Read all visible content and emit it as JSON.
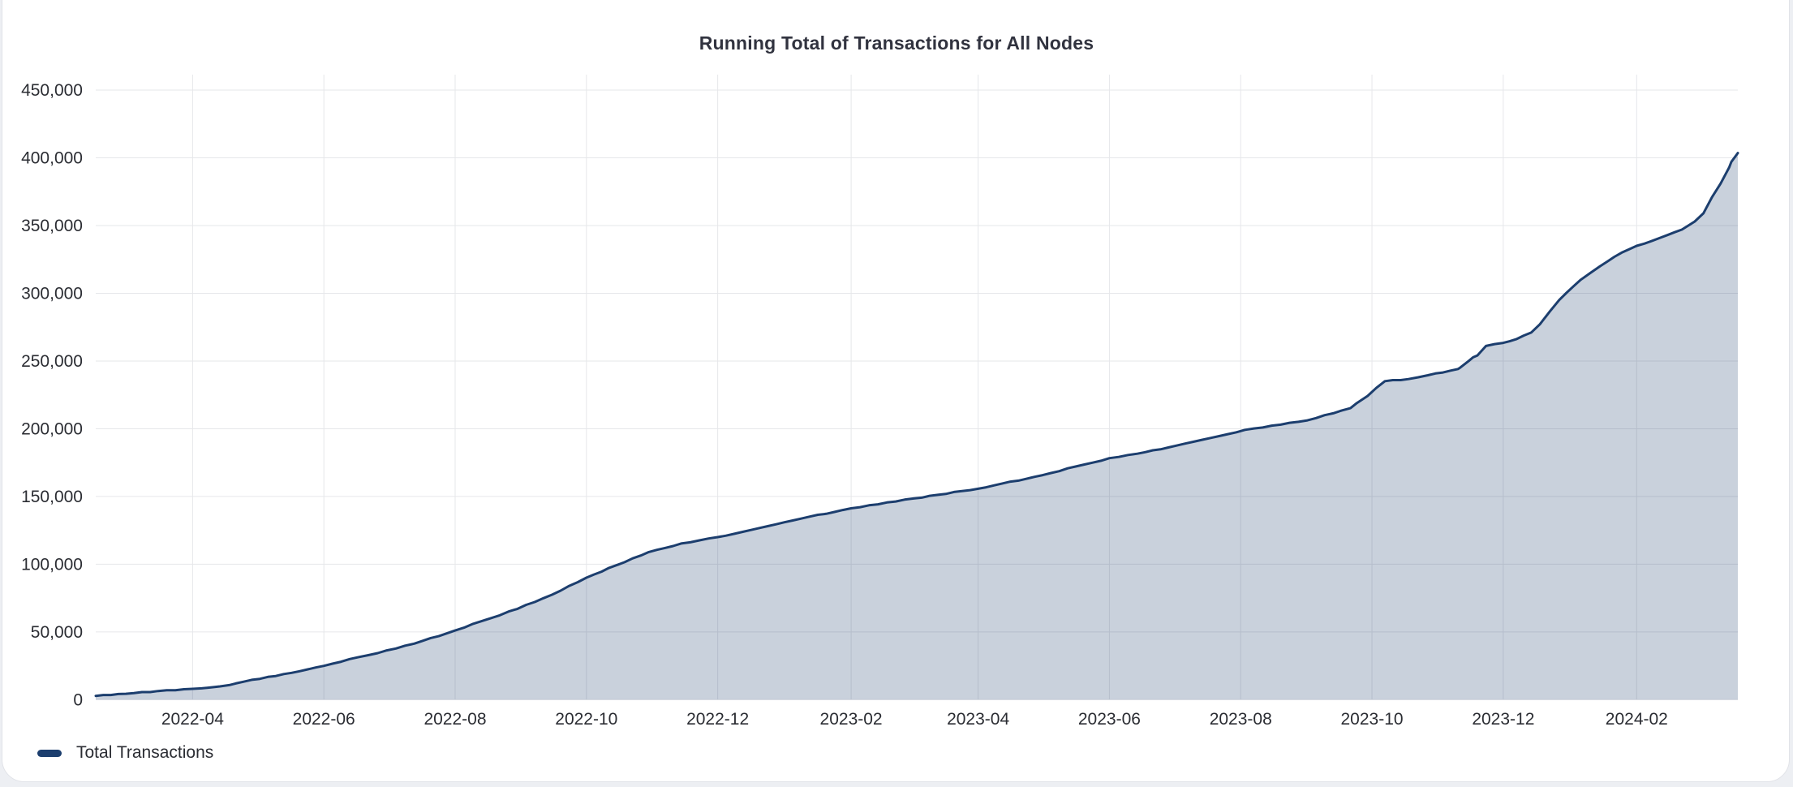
{
  "chart_data": {
    "type": "area",
    "title": "Running Total of Transactions for All Nodes",
    "legend": {
      "position": "bottom-left",
      "items": [
        {
          "label": "Total Transactions",
          "color": "#1c3e6e"
        }
      ]
    },
    "x_axis": {
      "type": "date",
      "range": [
        "2022-02-15",
        "2024-03-19"
      ],
      "tick_dates": [
        "2022-04-01",
        "2022-06-01",
        "2022-08-01",
        "2022-10-01",
        "2022-12-01",
        "2023-02-01",
        "2023-04-01",
        "2023-06-01",
        "2023-08-01",
        "2023-10-01",
        "2023-12-01",
        "2024-02-01"
      ],
      "tick_labels": [
        "2022-04",
        "2022-06",
        "2022-08",
        "2022-10",
        "2022-12",
        "2023-02",
        "2023-04",
        "2023-06",
        "2023-08",
        "2023-10",
        "2023-12",
        "2024-02"
      ]
    },
    "y_axis": {
      "range": [
        0,
        450000
      ],
      "tick_values": [
        0,
        50000,
        100000,
        150000,
        200000,
        250000,
        300000,
        350000,
        400000,
        450000
      ],
      "tick_labels": [
        "0",
        "50,000",
        "100,000",
        "150,000",
        "200,000",
        "250,000",
        "300,000",
        "350,000",
        "400,000",
        "450,000"
      ]
    },
    "grid": true,
    "colors": {
      "line": "#1c3e6e",
      "fill": "rgba(28,62,110,0.24)",
      "gridline": "#e6e7ea",
      "tick_text": "#2b2d33",
      "title_text": "#31333f"
    },
    "series": [
      {
        "name": "Total Transactions",
        "line_color": "#1c3e6e",
        "fill_color": "rgba(28,62,110,0.24)",
        "points": [
          [
            "2022-02-15",
            2800
          ],
          [
            "2022-03-01",
            4400
          ],
          [
            "2022-03-16",
            6400
          ],
          [
            "2022-04-01",
            8000
          ],
          [
            "2022-04-18",
            10800
          ],
          [
            "2022-04-21",
            12000
          ],
          [
            "2022-05-06",
            16800
          ],
          [
            "2022-05-17",
            19800
          ],
          [
            "2022-06-01",
            25000
          ],
          [
            "2022-06-13",
            30000
          ],
          [
            "2022-06-26",
            34400
          ],
          [
            "2022-07-13",
            41400
          ],
          [
            "2022-08-01",
            51100
          ],
          [
            "2022-08-30",
            67100
          ],
          [
            "2022-09-15",
            77500
          ],
          [
            "2022-10-01",
            90100
          ],
          [
            "2022-10-15",
            99300
          ],
          [
            "2022-10-30",
            109000
          ],
          [
            "2022-11-14",
            115300
          ],
          [
            "2022-12-01",
            120000
          ],
          [
            "2023-01-01",
            131000
          ],
          [
            "2023-02-01",
            141300
          ],
          [
            "2023-03-02",
            148500
          ],
          [
            "2023-04-01",
            155700
          ],
          [
            "2023-05-01",
            165800
          ],
          [
            "2023-06-01",
            178300
          ],
          [
            "2023-06-14",
            181600
          ],
          [
            "2023-07-02",
            187500
          ],
          [
            "2023-08-03",
            199200
          ],
          [
            "2023-09-01",
            206200
          ],
          [
            "2023-09-21",
            215200
          ],
          [
            "2023-09-24",
            219000
          ],
          [
            "2023-09-29",
            224200
          ],
          [
            "2023-10-03",
            230100
          ],
          [
            "2023-10-07",
            235100
          ],
          [
            "2023-10-18",
            236700
          ],
          [
            "2023-10-27",
            239500
          ],
          [
            "2023-11-10",
            244100
          ],
          [
            "2023-11-11",
            245100
          ],
          [
            "2023-11-15",
            250100
          ],
          [
            "2023-11-17",
            252700
          ],
          [
            "2023-11-19",
            254100
          ],
          [
            "2023-11-23",
            261100
          ],
          [
            "2023-12-01",
            263400
          ],
          [
            "2023-12-07",
            266100
          ],
          [
            "2023-12-14",
            271000
          ],
          [
            "2023-12-18",
            277100
          ],
          [
            "2023-12-27",
            295000
          ],
          [
            "2024-01-06",
            310000
          ],
          [
            "2024-01-15",
            320000
          ],
          [
            "2024-01-25",
            330000
          ],
          [
            "2024-02-01",
            335000
          ],
          [
            "2024-02-12",
            341000
          ],
          [
            "2024-02-22",
            347000
          ],
          [
            "2024-02-28",
            353000
          ],
          [
            "2024-03-03",
            359000
          ],
          [
            "2024-03-05",
            365000
          ],
          [
            "2024-03-07",
            371000
          ],
          [
            "2024-03-09",
            376000
          ],
          [
            "2024-03-11",
            381000
          ],
          [
            "2024-03-13",
            387000
          ],
          [
            "2024-03-15",
            393000
          ],
          [
            "2024-03-16",
            397000
          ],
          [
            "2024-03-19",
            403500
          ]
        ]
      }
    ]
  }
}
